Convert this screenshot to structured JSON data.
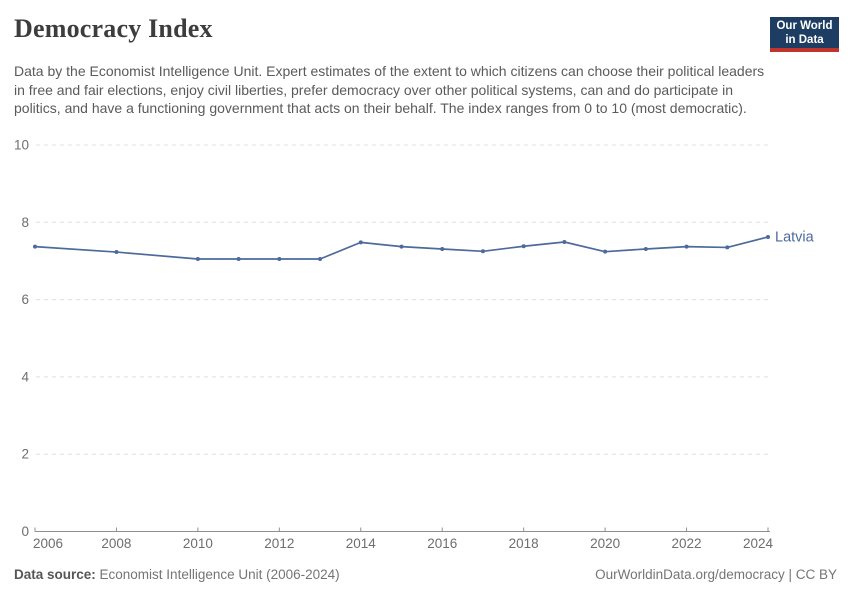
{
  "header": {
    "title": "Democracy Index",
    "subtitle": "Data by the Economist Intelligence Unit. Expert estimates of the extent to which citizens can choose their political leaders in free and fair elections, enjoy civil liberties, prefer democracy over other political systems, can and do participate in politics, and have a functioning government that acts on their behalf. The index ranges from 0 to 10 (most democratic).",
    "logo": {
      "line1": "Our World",
      "line2": "in Data"
    }
  },
  "chart_data": {
    "type": "line",
    "title": "Democracy Index",
    "entity_label": "Latvia",
    "xlim": [
      2006,
      2024
    ],
    "ylim": [
      0,
      10
    ],
    "x_ticks": [
      2006,
      2008,
      2010,
      2012,
      2014,
      2016,
      2018,
      2020,
      2022,
      2024
    ],
    "y_ticks": [
      0,
      2,
      4,
      6,
      8,
      10
    ],
    "grid": "horizontal-dashed",
    "legend_position": "line-end-label",
    "series": [
      {
        "name": "Latvia",
        "color": "#4c6a9c",
        "points": [
          {
            "year": 2006,
            "value": 7.37
          },
          {
            "year": 2008,
            "value": 7.23
          },
          {
            "year": 2010,
            "value": 7.05
          },
          {
            "year": 2011,
            "value": 7.05
          },
          {
            "year": 2012,
            "value": 7.05
          },
          {
            "year": 2013,
            "value": 7.05
          },
          {
            "year": 2014,
            "value": 7.48
          },
          {
            "year": 2015,
            "value": 7.37
          },
          {
            "year": 2016,
            "value": 7.31
          },
          {
            "year": 2017,
            "value": 7.25
          },
          {
            "year": 2018,
            "value": 7.38
          },
          {
            "year": 2019,
            "value": 7.49
          },
          {
            "year": 2020,
            "value": 7.24
          },
          {
            "year": 2021,
            "value": 7.31
          },
          {
            "year": 2022,
            "value": 7.37
          },
          {
            "year": 2023,
            "value": 7.35
          },
          {
            "year": 2024,
            "value": 7.62
          }
        ]
      }
    ]
  },
  "footer": {
    "source_label": "Data source:",
    "source_value": " Economist Intelligence Unit (2006-2024)",
    "credit": "OurWorldinData.org/democracy | CC BY"
  },
  "colors": {
    "line": "#4c6a9c",
    "grid": "#e0e0e0",
    "axis": "#8f8f8f",
    "tick_label": "#6e6e6e",
    "logo_bg": "#1d3d63",
    "logo_accent": "#c0342c"
  }
}
